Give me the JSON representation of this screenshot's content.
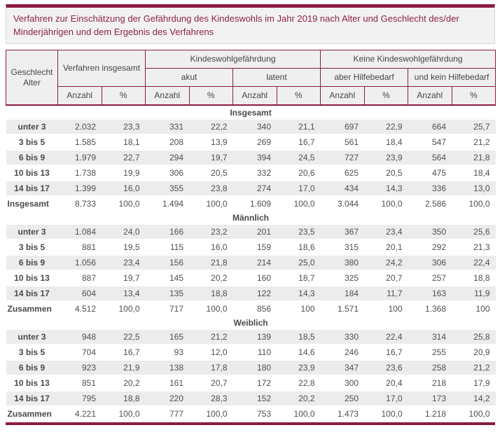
{
  "accent_color": "#8c1c42",
  "header_bg_color": "#efefef",
  "stripe_color": "#ececec",
  "chart_data": {
    "type": "table",
    "title": "Verfahren zur Einschätzung der Gefährdung des Kindeswohls im Jahr 2019 nach Alter und Geschlecht des/der Minderjährigen und dem Ergebnis des Verfahrens",
    "row_dimension": [
      "Geschlecht",
      "Alter"
    ],
    "col_groups": [
      {
        "label": "Verfahren insgesamt",
        "subs": []
      },
      {
        "label": "Kindeswohlgefährdung",
        "subs": [
          "akut",
          "latent"
        ]
      },
      {
        "label": "Keine Kindeswohlgefährdung",
        "subs": [
          "aber Hilfebedarf",
          "und kein Hilfebedarf"
        ]
      }
    ],
    "measures": [
      "Anzahl",
      "%"
    ],
    "sections": [
      {
        "label": "Insgesamt",
        "rows": [
          {
            "label": "unter 3",
            "values": [
              "2.032",
              "23,3",
              "331",
              "22,2",
              "340",
              "21,1",
              "697",
              "22,9",
              "664",
              "25,7"
            ]
          },
          {
            "label": "3 bis 5",
            "values": [
              "1.585",
              "18,1",
              "208",
              "13,9",
              "269",
              "16,7",
              "561",
              "18,4",
              "547",
              "21,2"
            ]
          },
          {
            "label": "6 bis 9",
            "values": [
              "1.979",
              "22,7",
              "294",
              "19,7",
              "394",
              "24,5",
              "727",
              "23,9",
              "564",
              "21,8"
            ]
          },
          {
            "label": "10 bis 13",
            "values": [
              "1.738",
              "19,9",
              "306",
              "20,5",
              "332",
              "20,6",
              "625",
              "20,5",
              "475",
              "18,4"
            ]
          },
          {
            "label": "14 bis 17",
            "values": [
              "1.399",
              "16,0",
              "355",
              "23,8",
              "274",
              "17,0",
              "434",
              "14,3",
              "336",
              "13,0"
            ]
          }
        ],
        "total": {
          "label": "Insgesamt",
          "values": [
            "8.733",
            "100,0",
            "1.494",
            "100,0",
            "1.609",
            "100,0",
            "3.044",
            "100,0",
            "2.586",
            "100,0"
          ]
        }
      },
      {
        "label": "Männlich",
        "rows": [
          {
            "label": "unter 3",
            "values": [
              "1.084",
              "24,0",
              "166",
              "23,2",
              "201",
              "23,5",
              "367",
              "23,4",
              "350",
              "25,6"
            ]
          },
          {
            "label": "3 bis 5",
            "values": [
              "881",
              "19,5",
              "115",
              "16,0",
              "159",
              "18,6",
              "315",
              "20,1",
              "292",
              "21,3"
            ]
          },
          {
            "label": "6 bis 9",
            "values": [
              "1.056",
              "23,4",
              "156",
              "21,8",
              "214",
              "25,0",
              "380",
              "24,2",
              "306",
              "22,4"
            ]
          },
          {
            "label": "10 bis 13",
            "values": [
              "887",
              "19,7",
              "145",
              "20,2",
              "160",
              "18,7",
              "325",
              "20,7",
              "257",
              "18,8"
            ]
          },
          {
            "label": "14 bis 17",
            "values": [
              "604",
              "13,4",
              "135",
              "18,8",
              "122",
              "14,3",
              "184",
              "11,7",
              "163",
              "11,9"
            ]
          }
        ],
        "total": {
          "label": "Zusammen",
          "values": [
            "4.512",
            "100,0",
            "717",
            "100,0",
            "856",
            "100",
            "1.571",
            "100",
            "1.368",
            "100"
          ]
        }
      },
      {
        "label": "Weiblich",
        "rows": [
          {
            "label": "unter 3",
            "values": [
              "948",
              "22,5",
              "165",
              "21,2",
              "139",
              "18,5",
              "330",
              "22,4",
              "314",
              "25,8"
            ]
          },
          {
            "label": "3 bis 5",
            "values": [
              "704",
              "16,7",
              "93",
              "12,0",
              "110",
              "14,6",
              "246",
              "16,7",
              "255",
              "20,9"
            ]
          },
          {
            "label": "6 bis 9",
            "values": [
              "923",
              "21,9",
              "138",
              "17,8",
              "180",
              "23,9",
              "347",
              "23,6",
              "258",
              "21,2"
            ]
          },
          {
            "label": "10 bis 13",
            "values": [
              "851",
              "20,2",
              "161",
              "20,7",
              "172",
              "22,8",
              "300",
              "20,4",
              "218",
              "17,9"
            ]
          },
          {
            "label": "14 bis 17",
            "values": [
              "795",
              "18,8",
              "220",
              "28,3",
              "152",
              "20,2",
              "250",
              "17,0",
              "173",
              "14,2"
            ]
          }
        ],
        "total": {
          "label": "Zusammen",
          "values": [
            "4.221",
            "100,0",
            "777",
            "100,0",
            "753",
            "100,0",
            "1.473",
            "100,0",
            "1.218",
            "100,0"
          ]
        }
      }
    ]
  }
}
